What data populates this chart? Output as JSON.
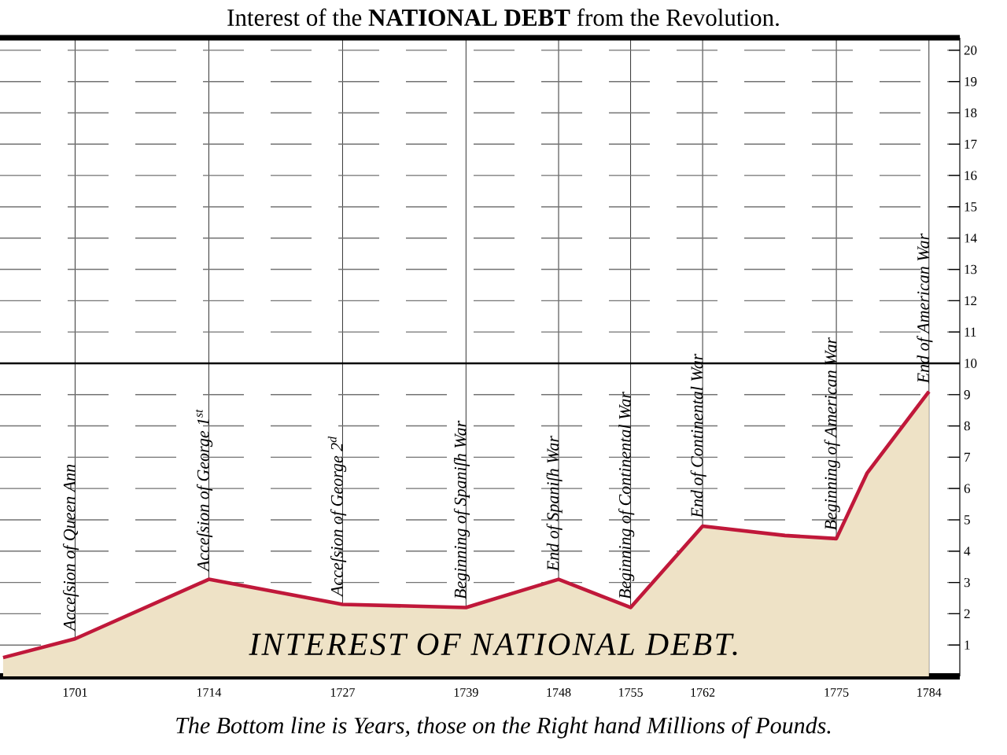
{
  "chart_data": {
    "type": "area",
    "title": "Interest of the **NATIONAL DEBT** from the Revolution.",
    "x": [
      1694,
      1701,
      1714,
      1727,
      1739,
      1748,
      1755,
      1762,
      1770,
      1775,
      1778,
      1784
    ],
    "series": [
      {
        "name": "INTEREST OF NATIONAL DEBT.",
        "color": "#eee2c6",
        "values": [
          0.6,
          1.2,
          3.1,
          2.3,
          2.2,
          3.1,
          2.2,
          4.8,
          4.5,
          4.4,
          6.5,
          9.1
        ]
      }
    ],
    "xlim": [
      1693.7,
      1787
    ],
    "ylim": [
      0,
      20.4
    ],
    "xticks": [
      1701,
      1714,
      1727,
      1739,
      1748,
      1755,
      1762,
      1775,
      1784
    ],
    "yticks": [
      1,
      2,
      3,
      4,
      5,
      6,
      7,
      8,
      9,
      10,
      11,
      12,
      13,
      14,
      15,
      16,
      17,
      18,
      19,
      20
    ],
    "grid": true,
    "ref_lines": [
      {
        "axis": "y",
        "value": 10
      }
    ],
    "annotations": [
      {
        "text": "Acceſsion of Queen Ann",
        "x": 1701,
        "y": 1.2
      },
      {
        "text": "Acceſsion of George 1$^{st}$",
        "x": 1714,
        "y": 3.1
      },
      {
        "text": "Acceſsion of George 2$^{d}$",
        "x": 1727,
        "y": 2.3
      },
      {
        "text": "Beginning of Spaniſh War",
        "x": 1739,
        "y": 2.2
      },
      {
        "text": "End of Spaniſh War",
        "x": 1748,
        "y": 3.1
      },
      {
        "text": "Beginning of Continental War",
        "x": 1755,
        "y": 2.2
      },
      {
        "text": "End of Continental War",
        "x": 1762,
        "y": 4.8
      },
      {
        "text": "Beginning of American War",
        "x": 1775,
        "y": 4.4
      },
      {
        "text": "End of American War",
        "x": 1784,
        "y": 9.1
      },
      "The Bottom line is Years, those on the Right hand Millions of Pounds."
    ]
  }
}
